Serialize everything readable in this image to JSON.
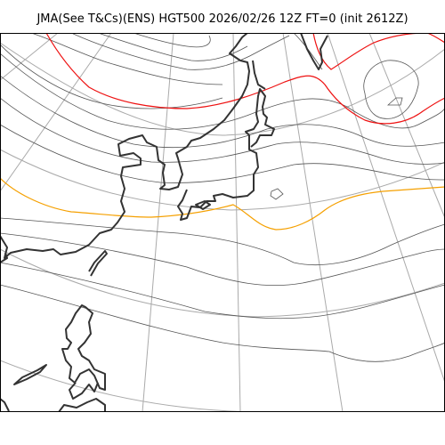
{
  "title": "JMA(See T&Cs)(ENS) HGT500 2026/02/26 12Z FT=0 (init 2612Z)",
  "colors": {
    "graticule": "#aaaaaa",
    "coastline": "#333333",
    "contour": "#555555",
    "highlight_red": "#ee1111",
    "highlight_orange": "#f5a000"
  }
}
